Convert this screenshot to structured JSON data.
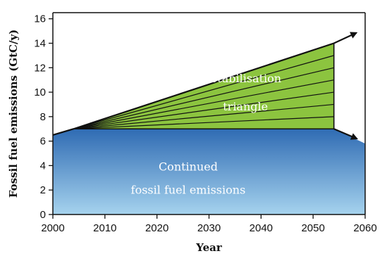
{
  "chart_data": {
    "type": "area",
    "xlabel": "Year",
    "ylabel": "Fossil fuel emissions (GtC/y)",
    "xlim": [
      2000,
      2060
    ],
    "ylim": [
      0,
      16.5
    ],
    "x_ticks": [
      2000,
      2010,
      2020,
      2030,
      2040,
      2050,
      2060
    ],
    "y_ticks": [
      0,
      2,
      4,
      6,
      8,
      10,
      12,
      14,
      16
    ],
    "grid": false,
    "series": [
      {
        "kind": "area",
        "x": [
          2000,
          2004,
          2054,
          2060
        ],
        "y": [
          6.5,
          7.0,
          7.0,
          5.8
        ],
        "color_top": "#2f6bb3",
        "color_bottom": "#a6d3ee"
      },
      {
        "kind": "triangle",
        "x": [
          2004,
          2054,
          2054
        ],
        "y": [
          7.0,
          14.0,
          7.0
        ],
        "color": "#8cc43f"
      }
    ],
    "wedge_end_values": [
      8.0,
      9.0,
      10.0,
      11.0,
      12.0,
      13.0
    ],
    "arrows": [
      {
        "x": [
          2000,
          2004,
          2054,
          2058.3
        ],
        "y": [
          6.5,
          7.0,
          14.0,
          14.85
        ]
      },
      {
        "x": [
          2054,
          2058.4
        ],
        "y": [
          7.0,
          6.2
        ]
      }
    ],
    "annotations": [
      {
        "id": "stabilisation",
        "lines": [
          "Stabilisation",
          "triangle"
        ],
        "x": 2037,
        "y": [
          10.8,
          8.5
        ]
      },
      {
        "id": "continued",
        "lines": [
          "Continued",
          "fossil fuel emissions"
        ],
        "x": 2026,
        "y": [
          3.6,
          1.7
        ]
      }
    ]
  }
}
